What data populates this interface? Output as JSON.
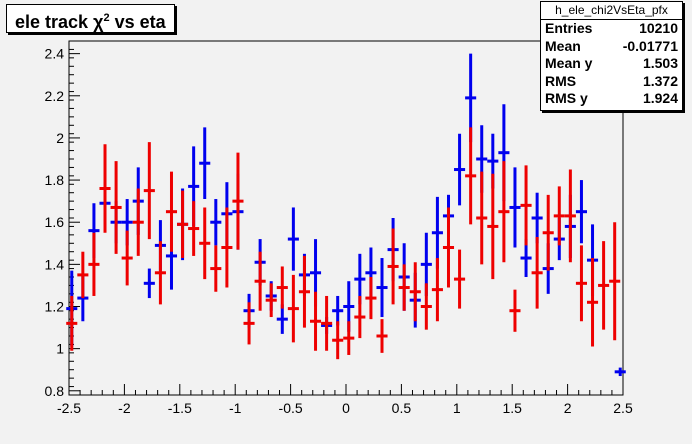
{
  "title": {
    "pre": "ele track ",
    "chi": "χ",
    "sup": "2",
    "post": " vs eta"
  },
  "stats": {
    "name": "h_ele_chi2VsEta_pfx",
    "rows": [
      {
        "label": "Entries",
        "value": "10210"
      },
      {
        "label": "Mean",
        "value": "-0.01771"
      },
      {
        "label": "Mean y",
        "value": "1.503"
      },
      {
        "label": "RMS",
        "value": "1.372"
      },
      {
        "label": "RMS y",
        "value": "1.924"
      }
    ]
  },
  "chart_data": {
    "type": "scatter",
    "title": "ele track χ2 vs eta",
    "xlim": [
      -2.5,
      2.5
    ],
    "ylim": [
      0.78,
      2.46
    ],
    "xticks": [
      -2.5,
      -2,
      -1.5,
      -1,
      -0.5,
      0,
      0.5,
      1,
      1.5,
      2,
      2.5
    ],
    "xtick_labels": [
      "-2.5",
      "-2",
      "-1.5",
      "-1",
      "-0.5",
      "0",
      "0.5",
      "1",
      "1.5",
      "2",
      "2.5"
    ],
    "yticks": [
      0.8,
      1,
      1.2,
      1.4,
      1.6,
      1.8,
      2,
      2.2,
      2.4
    ],
    "ytick_labels": [
      "0.8",
      "1",
      "1.2",
      "1.4",
      "1.6",
      "1.8",
      "2",
      "2.2",
      "2.4"
    ],
    "grid": false,
    "series": [
      {
        "color": "#0000ee",
        "points": [
          {
            "x": -2.475,
            "y": 1.19,
            "err": 0.18
          },
          {
            "x": -2.375,
            "y": 1.24,
            "err": 0.11
          },
          {
            "x": -2.275,
            "y": 1.56,
            "err": 0.13
          },
          {
            "x": -2.175,
            "y": 1.69,
            "err": 0.1
          },
          {
            "x": -2.075,
            "y": 1.6,
            "err": 0.1
          },
          {
            "x": -1.975,
            "y": 1.6,
            "err": 0.11
          },
          {
            "x": -1.875,
            "y": 1.7,
            "err": 0.16
          },
          {
            "x": -1.775,
            "y": 1.31,
            "err": 0.07
          },
          {
            "x": -1.675,
            "y": 1.49,
            "err": 0.12
          },
          {
            "x": -1.575,
            "y": 1.44,
            "err": 0.16
          },
          {
            "x": -1.475,
            "y": 1.59,
            "err": 0.17
          },
          {
            "x": -1.375,
            "y": 1.77,
            "err": 0.19
          },
          {
            "x": -1.275,
            "y": 1.88,
            "err": 0.17
          },
          {
            "x": -1.175,
            "y": 1.6,
            "err": 0.11
          },
          {
            "x": -1.075,
            "y": 1.64,
            "err": 0.15
          },
          {
            "x": -0.975,
            "y": 1.65,
            "err": 0.18
          },
          {
            "x": -0.875,
            "y": 1.18,
            "err": 0.08
          },
          {
            "x": -0.775,
            "y": 1.41,
            "err": 0.11
          },
          {
            "x": -0.675,
            "y": 1.25,
            "err": 0.07
          },
          {
            "x": -0.575,
            "y": 1.14,
            "err": 0.07
          },
          {
            "x": -0.475,
            "y": 1.52,
            "err": 0.15
          },
          {
            "x": -0.375,
            "y": 1.35,
            "err": 0.1
          },
          {
            "x": -0.275,
            "y": 1.36,
            "err": 0.16
          },
          {
            "x": -0.175,
            "y": 1.11,
            "err": 0.04
          },
          {
            "x": -0.075,
            "y": 1.18,
            "err": 0.07
          },
          {
            "x": 0.025,
            "y": 1.2,
            "err": 0.12
          },
          {
            "x": 0.125,
            "y": 1.33,
            "err": 0.12
          },
          {
            "x": 0.225,
            "y": 1.36,
            "err": 0.12
          },
          {
            "x": 0.325,
            "y": 1.29,
            "err": 0.14
          },
          {
            "x": 0.425,
            "y": 1.47,
            "err": 0.15
          },
          {
            "x": 0.525,
            "y": 1.34,
            "err": 0.16
          },
          {
            "x": 0.625,
            "y": 1.23,
            "err": 0.13
          },
          {
            "x": 0.725,
            "y": 1.4,
            "err": 0.15
          },
          {
            "x": 0.825,
            "y": 1.55,
            "err": 0.17
          },
          {
            "x": 0.925,
            "y": 1.63,
            "err": 0.1
          },
          {
            "x": 1.025,
            "y": 1.85,
            "err": 0.17
          },
          {
            "x": 1.125,
            "y": 2.19,
            "err": 0.21
          },
          {
            "x": 1.225,
            "y": 1.9,
            "err": 0.16
          },
          {
            "x": 1.325,
            "y": 1.89,
            "err": 0.13
          },
          {
            "x": 1.425,
            "y": 1.93,
            "err": 0.23
          },
          {
            "x": 1.525,
            "y": 1.67,
            "err": 0.19
          },
          {
            "x": 1.625,
            "y": 1.43,
            "err": 0.09
          },
          {
            "x": 1.725,
            "y": 1.62,
            "err": 0.12
          },
          {
            "x": 1.825,
            "y": 1.38,
            "err": 0.12
          },
          {
            "x": 1.925,
            "y": 1.52,
            "err": 0.1
          },
          {
            "x": 2.025,
            "y": 1.58,
            "err": 0.15
          },
          {
            "x": 2.125,
            "y": 1.65,
            "err": 0.15
          },
          {
            "x": 2.225,
            "y": 1.42,
            "err": 0.17
          },
          {
            "x": 2.475,
            "y": 0.89,
            "err": 0.02
          }
        ]
      },
      {
        "color": "#ee0000",
        "points": [
          {
            "x": -2.475,
            "y": 1.12,
            "err": 0.13
          },
          {
            "x": -2.375,
            "y": 1.35,
            "err": 0.11
          },
          {
            "x": -2.275,
            "y": 1.4,
            "err": 0.15
          },
          {
            "x": -2.175,
            "y": 1.76,
            "err": 0.21
          },
          {
            "x": -2.075,
            "y": 1.67,
            "err": 0.22
          },
          {
            "x": -1.975,
            "y": 1.43,
            "err": 0.13
          },
          {
            "x": -1.875,
            "y": 1.6,
            "err": 0.16
          },
          {
            "x": -1.775,
            "y": 1.75,
            "err": 0.23
          },
          {
            "x": -1.675,
            "y": 1.36,
            "err": 0.15
          },
          {
            "x": -1.575,
            "y": 1.65,
            "err": 0.19
          },
          {
            "x": -1.475,
            "y": 1.59,
            "err": 0.16
          },
          {
            "x": -1.375,
            "y": 1.57,
            "err": 0.13
          },
          {
            "x": -1.275,
            "y": 1.5,
            "err": 0.17
          },
          {
            "x": -1.175,
            "y": 1.38,
            "err": 0.11
          },
          {
            "x": -1.075,
            "y": 1.48,
            "err": 0.19
          },
          {
            "x": -0.975,
            "y": 1.7,
            "err": 0.23
          },
          {
            "x": -0.875,
            "y": 1.12,
            "err": 0.1
          },
          {
            "x": -0.775,
            "y": 1.32,
            "err": 0.14
          },
          {
            "x": -0.675,
            "y": 1.23,
            "err": 0.08
          },
          {
            "x": -0.575,
            "y": 1.29,
            "err": 0.1
          },
          {
            "x": -0.475,
            "y": 1.19,
            "err": 0.16
          },
          {
            "x": -0.375,
            "y": 1.27,
            "err": 0.17
          },
          {
            "x": -0.275,
            "y": 1.13,
            "err": 0.14
          },
          {
            "x": -0.175,
            "y": 1.12,
            "err": 0.13
          },
          {
            "x": -0.075,
            "y": 1.04,
            "err": 0.09
          },
          {
            "x": 0.025,
            "y": 1.05,
            "err": 0.08
          },
          {
            "x": 0.125,
            "y": 1.15,
            "err": 0.1
          },
          {
            "x": 0.225,
            "y": 1.24,
            "err": 0.1
          },
          {
            "x": 0.325,
            "y": 1.06,
            "err": 0.08
          },
          {
            "x": 0.425,
            "y": 1.39,
            "err": 0.18
          },
          {
            "x": 0.525,
            "y": 1.29,
            "err": 0.11
          },
          {
            "x": 0.625,
            "y": 1.27,
            "err": 0.14
          },
          {
            "x": 0.725,
            "y": 1.2,
            "err": 0.11
          },
          {
            "x": 0.825,
            "y": 1.28,
            "err": 0.15
          },
          {
            "x": 0.925,
            "y": 1.48,
            "err": 0.19
          },
          {
            "x": 1.025,
            "y": 1.33,
            "err": 0.14
          },
          {
            "x": 1.125,
            "y": 1.82,
            "err": 0.23
          },
          {
            "x": 1.225,
            "y": 1.62,
            "err": 0.22
          },
          {
            "x": 1.325,
            "y": 1.58,
            "err": 0.25
          },
          {
            "x": 1.425,
            "y": 1.65,
            "err": 0.24
          },
          {
            "x": 1.525,
            "y": 1.18,
            "err": 0.1
          },
          {
            "x": 1.625,
            "y": 1.68,
            "err": 0.19
          },
          {
            "x": 1.725,
            "y": 1.36,
            "err": 0.17
          },
          {
            "x": 1.825,
            "y": 1.55,
            "err": 0.18
          },
          {
            "x": 1.925,
            "y": 1.63,
            "err": 0.14
          },
          {
            "x": 2.025,
            "y": 1.63,
            "err": 0.22
          },
          {
            "x": 2.125,
            "y": 1.31,
            "err": 0.18
          },
          {
            "x": 2.225,
            "y": 1.22,
            "err": 0.21
          },
          {
            "x": 2.325,
            "y": 1.3,
            "err": 0.21
          },
          {
            "x": 2.425,
            "y": 1.32,
            "err": 0.28
          }
        ]
      }
    ]
  }
}
